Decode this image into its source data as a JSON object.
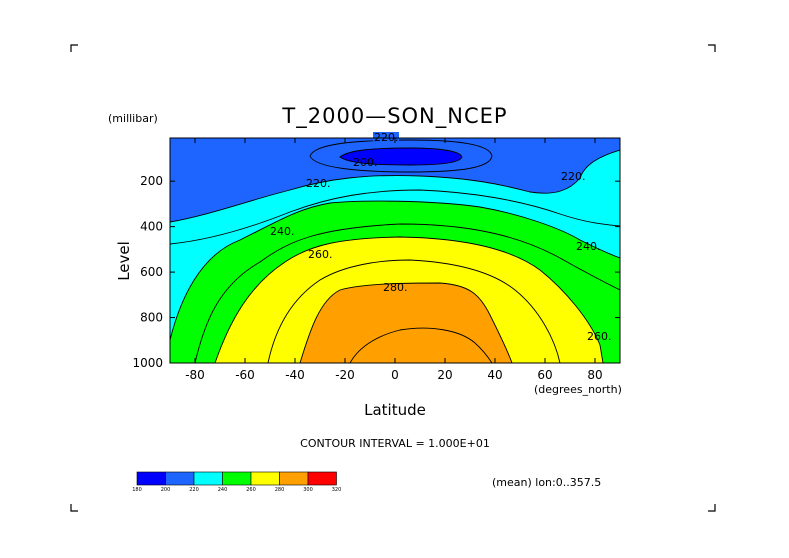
{
  "chart_data": {
    "type": "contour",
    "title": "T_2000—SON_NCEP",
    "xlabel": "Latitude",
    "x_unit": "(degrees_north)",
    "ylabel": "Level",
    "y_unit": "(millibar)",
    "xlim": [
      -90,
      90
    ],
    "ylim": [
      1000,
      10
    ],
    "y_reversed": true,
    "x_ticks": [
      -80,
      -60,
      -40,
      -20,
      0,
      20,
      40,
      60,
      80
    ],
    "y_ticks": [
      200,
      400,
      600,
      800,
      1000
    ],
    "contour_interval_text": "CONTOUR INTERVAL = 1.000E+01",
    "contour_levels": [
      200,
      210,
      220,
      230,
      240,
      250,
      260,
      270,
      280,
      290
    ],
    "contour_labels": [
      "200.",
      "220.",
      "220.",
      "220.",
      "240.",
      "240.",
      "260.",
      "260.",
      "280."
    ],
    "colorbar": {
      "values": [
        "180",
        "200",
        "220",
        "240",
        "260",
        "280",
        "300",
        "320"
      ],
      "colors": [
        "#0000ff",
        "#1e64ff",
        "#00ffff",
        "#00ff00",
        "#ffff00",
        "#ffa000",
        "#ff0000"
      ]
    },
    "annotation": "(mean) lon:0..357.5"
  }
}
